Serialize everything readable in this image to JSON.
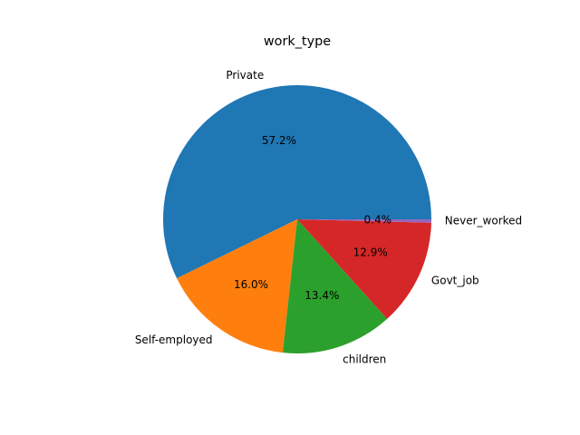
{
  "chart_data": {
    "type": "pie",
    "title": "work_type",
    "categories": [
      "Private",
      "Self-employed",
      "children",
      "Govt_job",
      "Never_worked"
    ],
    "values": [
      57.2,
      16.0,
      13.4,
      12.9,
      0.4
    ],
    "percent_labels": [
      "57.2%",
      "16.0%",
      "13.4%",
      "12.9%",
      "0.4%"
    ],
    "colors": [
      "#1f77b4",
      "#ff7f0e",
      "#2ca02c",
      "#d62728",
      "#9467bd"
    ],
    "legend": "none"
  }
}
